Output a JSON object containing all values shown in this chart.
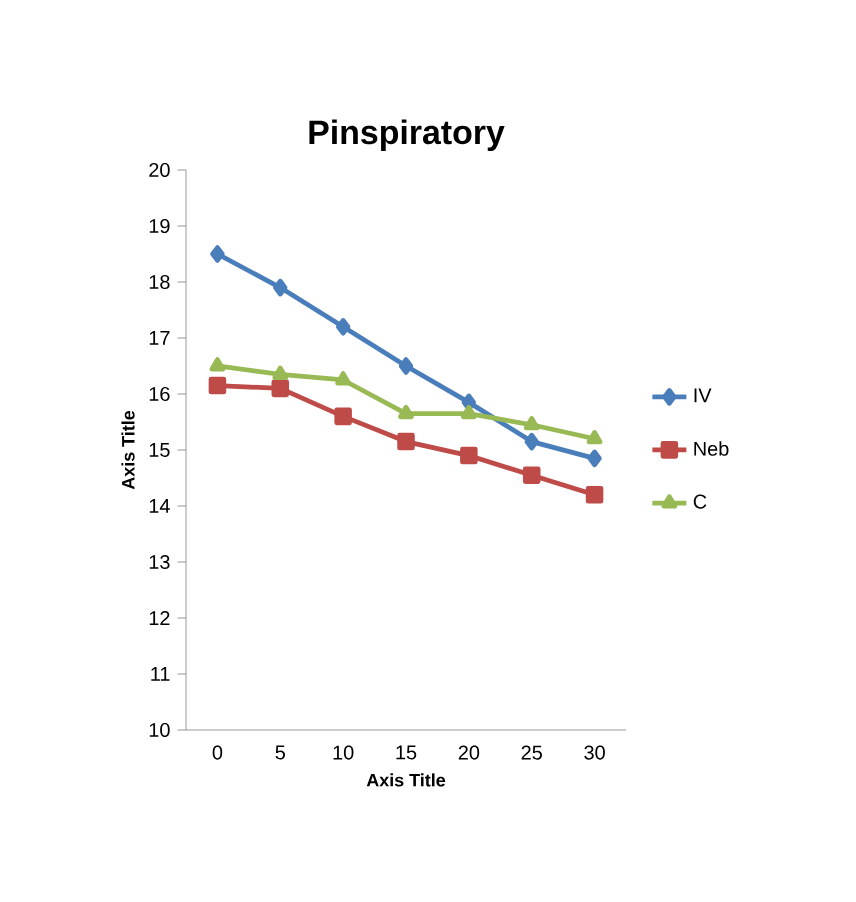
{
  "chart_data": {
    "type": "line",
    "title": "Pinspiratory",
    "xlabel": "Axis Title",
    "ylabel": "Axis Title",
    "categories": [
      "0",
      "5",
      "10",
      "15",
      "20",
      "25",
      "30"
    ],
    "series": [
      {
        "name": "IV",
        "color": "#4a7ebb",
        "marker": "diamond",
        "values": [
          18.5,
          17.9,
          17.2,
          16.5,
          15.85,
          15.15,
          14.85
        ]
      },
      {
        "name": "Neb",
        "color": "#be4b48",
        "marker": "square",
        "values": [
          16.15,
          16.1,
          15.6,
          15.15,
          14.9,
          14.55,
          14.2
        ]
      },
      {
        "name": "C",
        "color": "#98b954",
        "marker": "triangle",
        "values": [
          16.5,
          16.35,
          16.25,
          15.65,
          15.65,
          15.45,
          15.2
        ]
      }
    ],
    "ylim": [
      10,
      20
    ],
    "yticks": [
      10,
      11,
      12,
      13,
      14,
      15,
      16,
      17,
      18,
      19,
      20
    ],
    "legend": "right",
    "grid": false,
    "line_style": "solid"
  }
}
